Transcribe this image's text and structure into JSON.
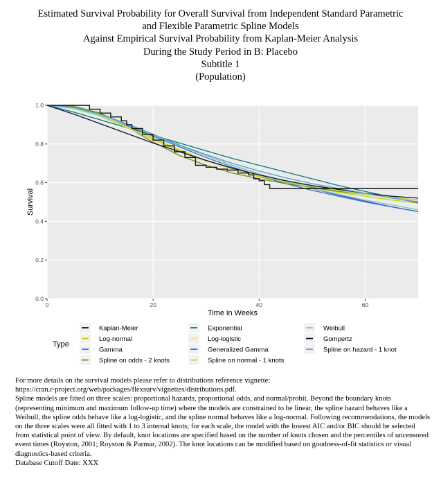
{
  "titles": {
    "line1": "Estimated Survival Probability for Overall Survival from Independent Standard Parametric",
    "line2": "and Flexible Parametric Spline Models",
    "line3": "Against Empirical Survival Probability from Kaplan-Meier Analysis",
    "line4": "During the Study Period in B: Placebo",
    "line5": "Subtitle 1",
    "line6": "(Population)"
  },
  "chart_data": {
    "type": "line",
    "xlabel": "Time in Weeks",
    "ylabel": "Survival",
    "xlim": [
      0,
      70
    ],
    "ylim": [
      0,
      1
    ],
    "xticks": [
      0,
      20,
      40,
      60
    ],
    "yticks": [
      0.0,
      0.2,
      0.4,
      0.6,
      0.8,
      1.0
    ],
    "xtick_labels": [
      "0",
      "20",
      "40",
      "60"
    ],
    "ytick_labels": [
      "0.0",
      "0.2",
      "0.4",
      "0.6",
      "0.8",
      "1.0"
    ],
    "grid": true,
    "legend_title": "Type",
    "legend_position": "bottom",
    "series": [
      {
        "name": "Kaplan-Meier",
        "color": "#111111",
        "step": true,
        "x": [
          0,
          5,
          8,
          10,
          12,
          14,
          15,
          16,
          18,
          20,
          22,
          24,
          26,
          28,
          30,
          32,
          34,
          36,
          38,
          39,
          40,
          41,
          42,
          70
        ],
        "y": [
          1.0,
          1.0,
          0.98,
          0.96,
          0.94,
          0.92,
          0.9,
          0.88,
          0.85,
          0.82,
          0.79,
          0.76,
          0.73,
          0.69,
          0.68,
          0.67,
          0.665,
          0.65,
          0.64,
          0.62,
          0.61,
          0.59,
          0.57,
          0.57
        ]
      },
      {
        "name": "Log-normal",
        "color": "#c8d400",
        "x": [
          0,
          5,
          10,
          15,
          20,
          25,
          30,
          35,
          40,
          45,
          50,
          55,
          60,
          65,
          70
        ],
        "y": [
          1.0,
          0.995,
          0.96,
          0.9,
          0.83,
          0.77,
          0.715,
          0.67,
          0.63,
          0.6,
          0.575,
          0.55,
          0.53,
          0.51,
          0.495
        ]
      },
      {
        "name": "Gamma",
        "color": "#4466cc",
        "x": [
          0,
          5,
          10,
          15,
          20,
          25,
          30,
          35,
          40,
          45,
          50,
          55,
          60,
          65,
          70
        ],
        "y": [
          1.0,
          0.985,
          0.945,
          0.895,
          0.84,
          0.785,
          0.73,
          0.68,
          0.635,
          0.595,
          0.56,
          0.53,
          0.5,
          0.475,
          0.45
        ]
      },
      {
        "name": "Spline on odds - 2 knots",
        "color": "#6f8a1e",
        "x": [
          0,
          5,
          10,
          15,
          20,
          25,
          30,
          35,
          40,
          45,
          50,
          55,
          60,
          65,
          70
        ],
        "y": [
          1.0,
          0.995,
          0.96,
          0.89,
          0.81,
          0.74,
          0.69,
          0.65,
          0.62,
          0.595,
          0.575,
          0.555,
          0.54,
          0.525,
          0.51
        ]
      },
      {
        "name": "Exponential",
        "color": "#0b7a7a",
        "x": [
          0,
          5,
          10,
          15,
          20,
          25,
          30,
          35,
          40,
          45,
          50,
          55,
          60,
          65,
          70
        ],
        "y": [
          1.0,
          0.965,
          0.925,
          0.885,
          0.845,
          0.805,
          0.765,
          0.725,
          0.69,
          0.655,
          0.62,
          0.585,
          0.555,
          0.525,
          0.495
        ]
      },
      {
        "name": "Log-logistic",
        "color": "#f3d98a",
        "x": [
          0,
          5,
          10,
          15,
          20,
          25,
          30,
          35,
          40,
          45,
          50,
          55,
          60,
          65,
          70
        ],
        "y": [
          1.0,
          0.99,
          0.95,
          0.89,
          0.82,
          0.76,
          0.71,
          0.67,
          0.635,
          0.605,
          0.58,
          0.56,
          0.54,
          0.52,
          0.505
        ]
      },
      {
        "name": "Generalized Gamma",
        "color": "#3c5bd6",
        "x": [
          0,
          5,
          10,
          15,
          20,
          25,
          30,
          35,
          40,
          45,
          50,
          55,
          60,
          65,
          70
        ],
        "y": [
          1.0,
          0.99,
          0.955,
          0.905,
          0.85,
          0.795,
          0.74,
          0.69,
          0.645,
          0.605,
          0.57,
          0.535,
          0.505,
          0.475,
          0.45
        ]
      },
      {
        "name": "Spline on normal - 1 knots",
        "color": "#b5d65a",
        "x": [
          0,
          5,
          10,
          15,
          20,
          25,
          30,
          35,
          40,
          45,
          50,
          55,
          60,
          65,
          70
        ],
        "y": [
          1.0,
          0.985,
          0.945,
          0.885,
          0.825,
          0.765,
          0.715,
          0.67,
          0.635,
          0.605,
          0.58,
          0.56,
          0.54,
          0.525,
          0.51
        ]
      },
      {
        "name": "Weibull",
        "color": "#7fcfa6",
        "x": [
          0,
          5,
          10,
          15,
          20,
          25,
          30,
          35,
          40,
          45,
          50,
          55,
          60,
          65,
          70
        ],
        "y": [
          1.0,
          0.985,
          0.95,
          0.9,
          0.845,
          0.79,
          0.74,
          0.69,
          0.645,
          0.605,
          0.57,
          0.54,
          0.51,
          0.485,
          0.46
        ]
      },
      {
        "name": "Gompertz",
        "color": "#101030",
        "x": [
          0,
          5,
          10,
          15,
          20,
          25,
          30,
          35,
          40,
          45,
          50,
          55,
          60,
          65,
          70
        ],
        "y": [
          1.0,
          0.955,
          0.905,
          0.855,
          0.805,
          0.76,
          0.715,
          0.675,
          0.64,
          0.61,
          0.585,
          0.565,
          0.545,
          0.53,
          0.52
        ]
      },
      {
        "name": "Spline on hazard - 1 knot",
        "color": "#5b9bd5",
        "x": [
          0,
          5,
          10,
          15,
          20,
          25,
          30,
          35,
          40,
          45,
          50,
          55,
          60,
          65,
          70
        ],
        "y": [
          1.0,
          0.99,
          0.955,
          0.905,
          0.85,
          0.795,
          0.745,
          0.7,
          0.66,
          0.625,
          0.595,
          0.57,
          0.545,
          0.52,
          0.5
        ]
      }
    ]
  },
  "footnote": {
    "line1": "For more details on the survival models please refer to distributions reference vignette:",
    "line2": "https://cran.r-project.org/web/packages/flexsurv/vignettes/distributions.pdf.",
    "line3": "Spline models are fitted on three scales: proportional hazards, proportional odds, and normal/probit. Beyond the boundary knots (representing minimum and maximum follow-up time) where the models are constrained to be linear, the spline hazard behaves like a Weibull, the spline odds behave like a log-logistic, and the spline normal behaves like a log-normal. Following recommendations, the models on the three scales were all fitted with 1 to 3 internal knots; for each scale, the model with the lowest AIC and/or BIC should be selected from statistical point of view. By default, knot locations are specified based on the number of knots chosen and the percentiles of uncensored event times (Royston, 2001; Royston & Parmar, 2002). The knot locations can be modified based on goodness-of-fit statistics or visual diagnostics-based criteria.",
    "line4": "Database Cutoff Date: XXX"
  }
}
